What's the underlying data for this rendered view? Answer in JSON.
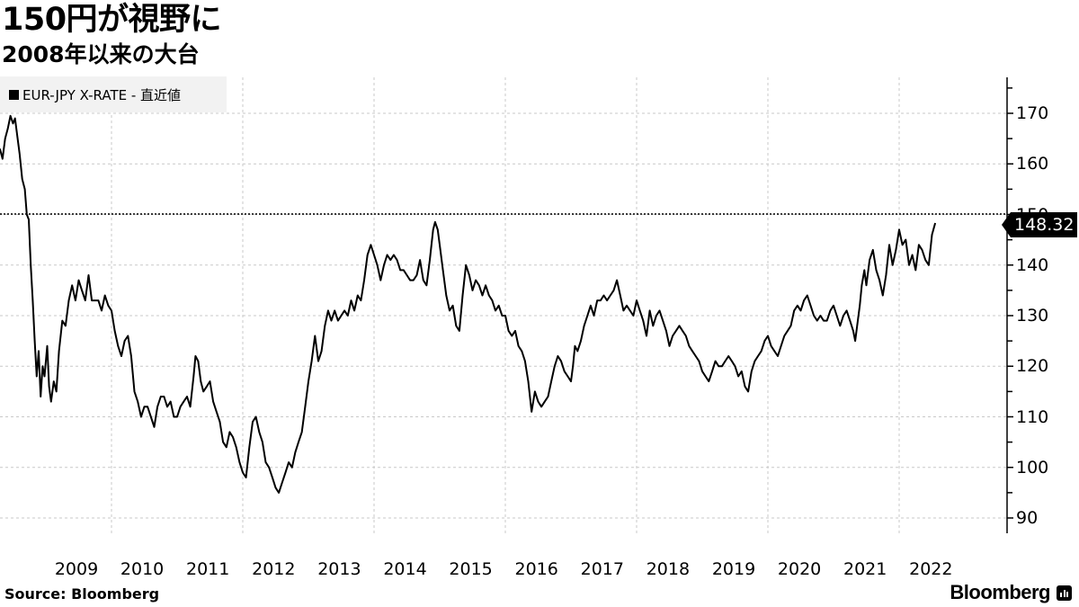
{
  "header": {
    "title": "150円が視野に",
    "subtitle": "2008年以来の大台"
  },
  "legend": {
    "label": "EUR-JPY X-RATE - 直近値",
    "color": "#000000"
  },
  "footer": {
    "source": "Source:  Bloomberg",
    "brand": "Bloomberg"
  },
  "last_value_label": "148.32",
  "chart_data": {
    "type": "line",
    "title": "150円が視野に",
    "subtitle": "2008年以来の大台",
    "xlabel": "",
    "ylabel": "",
    "series": [
      {
        "name": "EUR-JPY X-RATE - 直近値",
        "color": "#000000",
        "last_value": 148.32,
        "points": [
          [
            2008.3,
            163
          ],
          [
            2008.34,
            161
          ],
          [
            2008.38,
            165
          ],
          [
            2008.42,
            167
          ],
          [
            2008.46,
            169.5
          ],
          [
            2008.5,
            168
          ],
          [
            2008.53,
            169
          ],
          [
            2008.57,
            165
          ],
          [
            2008.6,
            162
          ],
          [
            2008.64,
            157
          ],
          [
            2008.68,
            155
          ],
          [
            2008.71,
            150
          ],
          [
            2008.74,
            149
          ],
          [
            2008.77,
            140
          ],
          [
            2008.8,
            133
          ],
          [
            2008.83,
            125
          ],
          [
            2008.86,
            118
          ],
          [
            2008.89,
            123
          ],
          [
            2008.92,
            114
          ],
          [
            2008.95,
            120
          ],
          [
            2008.98,
            118
          ],
          [
            2009.02,
            124
          ],
          [
            2009.05,
            116
          ],
          [
            2009.08,
            113
          ],
          [
            2009.12,
            117
          ],
          [
            2009.16,
            115
          ],
          [
            2009.2,
            123
          ],
          [
            2009.25,
            129
          ],
          [
            2009.3,
            128
          ],
          [
            2009.35,
            133
          ],
          [
            2009.4,
            136
          ],
          [
            2009.45,
            133
          ],
          [
            2009.5,
            137
          ],
          [
            2009.55,
            135
          ],
          [
            2009.6,
            133
          ],
          [
            2009.65,
            138
          ],
          [
            2009.7,
            133
          ],
          [
            2009.75,
            133
          ],
          [
            2009.8,
            133
          ],
          [
            2009.85,
            131
          ],
          [
            2009.9,
            134
          ],
          [
            2009.95,
            132
          ],
          [
            2010.0,
            131
          ],
          [
            2010.05,
            127
          ],
          [
            2010.1,
            124
          ],
          [
            2010.15,
            122
          ],
          [
            2010.2,
            125
          ],
          [
            2010.25,
            126
          ],
          [
            2010.3,
            122
          ],
          [
            2010.35,
            115
          ],
          [
            2010.4,
            113
          ],
          [
            2010.45,
            110
          ],
          [
            2010.5,
            112
          ],
          [
            2010.55,
            112
          ],
          [
            2010.6,
            110
          ],
          [
            2010.65,
            108
          ],
          [
            2010.7,
            112
          ],
          [
            2010.75,
            114
          ],
          [
            2010.8,
            114
          ],
          [
            2010.85,
            112
          ],
          [
            2010.9,
            113
          ],
          [
            2010.95,
            110
          ],
          [
            2011.0,
            110
          ],
          [
            2011.05,
            112
          ],
          [
            2011.1,
            113
          ],
          [
            2011.15,
            114
          ],
          [
            2011.2,
            112
          ],
          [
            2011.25,
            118
          ],
          [
            2011.28,
            122
          ],
          [
            2011.32,
            121
          ],
          [
            2011.36,
            117
          ],
          [
            2011.4,
            115
          ],
          [
            2011.45,
            116
          ],
          [
            2011.5,
            117
          ],
          [
            2011.55,
            113
          ],
          [
            2011.6,
            111
          ],
          [
            2011.65,
            109
          ],
          [
            2011.7,
            105
          ],
          [
            2011.75,
            104
          ],
          [
            2011.8,
            107
          ],
          [
            2011.85,
            106
          ],
          [
            2011.9,
            104
          ],
          [
            2011.95,
            101
          ],
          [
            2012.0,
            99
          ],
          [
            2012.05,
            98
          ],
          [
            2012.1,
            104
          ],
          [
            2012.15,
            109
          ],
          [
            2012.2,
            110
          ],
          [
            2012.25,
            107
          ],
          [
            2012.3,
            105
          ],
          [
            2012.35,
            101
          ],
          [
            2012.4,
            100
          ],
          [
            2012.45,
            98
          ],
          [
            2012.5,
            96
          ],
          [
            2012.55,
            95
          ],
          [
            2012.6,
            97
          ],
          [
            2012.65,
            99
          ],
          [
            2012.7,
            101
          ],
          [
            2012.75,
            100
          ],
          [
            2012.8,
            103
          ],
          [
            2012.85,
            105
          ],
          [
            2012.9,
            107
          ],
          [
            2012.95,
            112
          ],
          [
            2013.0,
            117
          ],
          [
            2013.05,
            121
          ],
          [
            2013.1,
            126
          ],
          [
            2013.15,
            121
          ],
          [
            2013.2,
            123
          ],
          [
            2013.25,
            128
          ],
          [
            2013.3,
            131
          ],
          [
            2013.35,
            129
          ],
          [
            2013.4,
            131
          ],
          [
            2013.45,
            129
          ],
          [
            2013.5,
            130
          ],
          [
            2013.55,
            131
          ],
          [
            2013.6,
            130
          ],
          [
            2013.65,
            133
          ],
          [
            2013.7,
            131
          ],
          [
            2013.75,
            134
          ],
          [
            2013.8,
            133
          ],
          [
            2013.85,
            137
          ],
          [
            2013.9,
            142
          ],
          [
            2013.95,
            144
          ],
          [
            2014.0,
            142
          ],
          [
            2014.05,
            140
          ],
          [
            2014.1,
            137
          ],
          [
            2014.15,
            140
          ],
          [
            2014.2,
            142
          ],
          [
            2014.25,
            141
          ],
          [
            2014.3,
            142
          ],
          [
            2014.35,
            141
          ],
          [
            2014.4,
            139
          ],
          [
            2014.45,
            139
          ],
          [
            2014.5,
            138
          ],
          [
            2014.55,
            137
          ],
          [
            2014.6,
            137
          ],
          [
            2014.65,
            138
          ],
          [
            2014.7,
            141
          ],
          [
            2014.75,
            137
          ],
          [
            2014.8,
            136
          ],
          [
            2014.85,
            141
          ],
          [
            2014.9,
            147
          ],
          [
            2014.93,
            148.5
          ],
          [
            2014.97,
            147
          ],
          [
            2015.0,
            144
          ],
          [
            2015.05,
            139
          ],
          [
            2015.1,
            134
          ],
          [
            2015.15,
            131
          ],
          [
            2015.2,
            132
          ],
          [
            2015.25,
            128
          ],
          [
            2015.3,
            127
          ],
          [
            2015.35,
            134
          ],
          [
            2015.4,
            140
          ],
          [
            2015.45,
            138
          ],
          [
            2015.5,
            135
          ],
          [
            2015.55,
            137
          ],
          [
            2015.6,
            136
          ],
          [
            2015.65,
            134
          ],
          [
            2015.7,
            136
          ],
          [
            2015.75,
            134
          ],
          [
            2015.8,
            133
          ],
          [
            2015.85,
            131
          ],
          [
            2015.9,
            132
          ],
          [
            2015.95,
            130
          ],
          [
            2016.0,
            130
          ],
          [
            2016.05,
            127
          ],
          [
            2016.1,
            126
          ],
          [
            2016.15,
            127
          ],
          [
            2016.2,
            124
          ],
          [
            2016.25,
            123
          ],
          [
            2016.3,
            121
          ],
          [
            2016.35,
            117
          ],
          [
            2016.4,
            111
          ],
          [
            2016.45,
            115
          ],
          [
            2016.5,
            113
          ],
          [
            2016.55,
            112
          ],
          [
            2016.6,
            113
          ],
          [
            2016.65,
            114
          ],
          [
            2016.7,
            117
          ],
          [
            2016.75,
            120
          ],
          [
            2016.8,
            122
          ],
          [
            2016.85,
            121
          ],
          [
            2016.9,
            119
          ],
          [
            2016.95,
            118
          ],
          [
            2017.0,
            117
          ],
          [
            2017.03,
            120
          ],
          [
            2017.06,
            124
          ],
          [
            2017.1,
            123
          ],
          [
            2017.15,
            125
          ],
          [
            2017.2,
            128
          ],
          [
            2017.25,
            130
          ],
          [
            2017.3,
            132
          ],
          [
            2017.35,
            130
          ],
          [
            2017.4,
            133
          ],
          [
            2017.45,
            133
          ],
          [
            2017.5,
            134
          ],
          [
            2017.55,
            133
          ],
          [
            2017.6,
            134
          ],
          [
            2017.65,
            135
          ],
          [
            2017.7,
            137
          ],
          [
            2017.75,
            134
          ],
          [
            2017.8,
            131
          ],
          [
            2017.85,
            132
          ],
          [
            2017.9,
            131
          ],
          [
            2017.95,
            130
          ],
          [
            2018.0,
            133
          ],
          [
            2018.05,
            131
          ],
          [
            2018.1,
            129
          ],
          [
            2018.15,
            126
          ],
          [
            2018.2,
            131
          ],
          [
            2018.25,
            128
          ],
          [
            2018.3,
            130
          ],
          [
            2018.35,
            131
          ],
          [
            2018.4,
            129
          ],
          [
            2018.45,
            127
          ],
          [
            2018.5,
            124
          ],
          [
            2018.55,
            126
          ],
          [
            2018.6,
            127
          ],
          [
            2018.65,
            128
          ],
          [
            2018.7,
            127
          ],
          [
            2018.75,
            126
          ],
          [
            2018.8,
            124
          ],
          [
            2018.85,
            123
          ],
          [
            2018.9,
            122
          ],
          [
            2018.95,
            121
          ],
          [
            2019.0,
            119
          ],
          [
            2019.05,
            118
          ],
          [
            2019.1,
            117
          ],
          [
            2019.15,
            119
          ],
          [
            2019.2,
            121
          ],
          [
            2019.25,
            120
          ],
          [
            2019.3,
            120
          ],
          [
            2019.35,
            121
          ],
          [
            2019.4,
            122
          ],
          [
            2019.45,
            121
          ],
          [
            2019.5,
            120
          ],
          [
            2019.55,
            118
          ],
          [
            2019.6,
            119
          ],
          [
            2019.65,
            116
          ],
          [
            2019.7,
            115
          ],
          [
            2019.75,
            119
          ],
          [
            2019.8,
            121
          ],
          [
            2019.85,
            122
          ],
          [
            2019.9,
            123
          ],
          [
            2019.95,
            125
          ],
          [
            2020.0,
            126
          ],
          [
            2020.05,
            124
          ],
          [
            2020.1,
            123
          ],
          [
            2020.15,
            122
          ],
          [
            2020.2,
            124
          ],
          [
            2020.25,
            126
          ],
          [
            2020.3,
            127
          ],
          [
            2020.35,
            128
          ],
          [
            2020.4,
            131
          ],
          [
            2020.45,
            132
          ],
          [
            2020.5,
            131
          ],
          [
            2020.55,
            133
          ],
          [
            2020.6,
            134
          ],
          [
            2020.65,
            132
          ],
          [
            2020.7,
            130
          ],
          [
            2020.75,
            129
          ],
          [
            2020.8,
            130
          ],
          [
            2020.85,
            129
          ],
          [
            2020.9,
            129
          ],
          [
            2020.95,
            131
          ],
          [
            2021.0,
            132
          ],
          [
            2021.05,
            130
          ],
          [
            2021.1,
            128
          ],
          [
            2021.15,
            130
          ],
          [
            2021.2,
            131
          ],
          [
            2021.25,
            129
          ],
          [
            2021.3,
            127
          ],
          [
            2021.33,
            125
          ],
          [
            2021.37,
            129
          ],
          [
            2021.4,
            132
          ],
          [
            2021.43,
            136
          ],
          [
            2021.47,
            139
          ],
          [
            2021.5,
            136
          ],
          [
            2021.55,
            141
          ],
          [
            2021.6,
            143
          ],
          [
            2021.65,
            139
          ],
          [
            2021.7,
            137
          ],
          [
            2021.75,
            134
          ],
          [
            2021.8,
            138
          ],
          [
            2021.85,
            144
          ],
          [
            2021.9,
            140
          ],
          [
            2021.95,
            143
          ],
          [
            2022.0,
            147
          ],
          [
            2022.05,
            144
          ],
          [
            2022.1,
            145
          ],
          [
            2022.15,
            140
          ],
          [
            2022.2,
            142
          ],
          [
            2022.25,
            139
          ],
          [
            2022.3,
            144
          ],
          [
            2022.35,
            143
          ],
          [
            2022.4,
            141
          ],
          [
            2022.45,
            140
          ],
          [
            2022.5,
            146
          ],
          [
            2022.55,
            148.32
          ]
        ]
      }
    ],
    "y_ticks": [
      170,
      160,
      150,
      140,
      130,
      120,
      110,
      100,
      90
    ],
    "x_ticks": [
      "2009",
      "2010",
      "2011",
      "2012",
      "2013",
      "2014",
      "2015",
      "2016",
      "2017",
      "2018",
      "2019",
      "2020",
      "2021",
      "2022"
    ],
    "ylim": [
      86,
      177
    ],
    "xlim": [
      2008.3,
      2022.6
    ],
    "grid": true,
    "reference_line": {
      "value": 150,
      "style": "dotted"
    },
    "legend_position": "top-left",
    "y_axis_position": "right"
  }
}
